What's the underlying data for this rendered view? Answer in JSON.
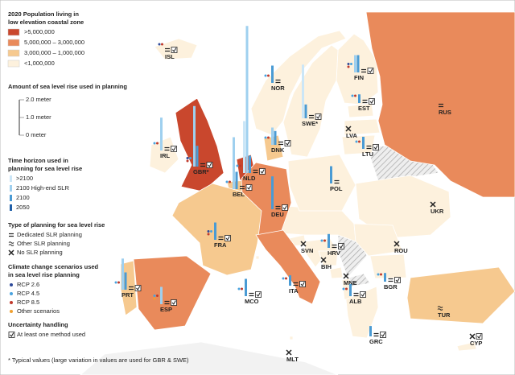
{
  "legend": {
    "population": {
      "title": [
        "2020 Population living in",
        "low elevation coastal zone"
      ],
      "items": [
        ">5,000,000",
        "5,000,000 – 3,000,000",
        "3,000,000 – 1,000,000",
        "<1,000,000"
      ],
      "colors": [
        "#c9472d",
        "#e98a5b",
        "#f6c98f",
        "#fdf1dd"
      ]
    },
    "slr": {
      "title": "Amount of sea level rise used in planning",
      "ticks": [
        "2.0 meter",
        "1.0 meter",
        "0 meter"
      ]
    },
    "horizon": {
      "title": [
        "Time horizon used in",
        "planning for sea level rise"
      ],
      "items": [
        ">2100",
        "2100 High-end SLR",
        "2100",
        "2050"
      ],
      "colors": [
        "#cbe6f7",
        "#9fd0ef",
        "#4a9bd4",
        "#1f5fa8"
      ]
    },
    "planning": {
      "title": "Type of planning for sea level rise",
      "items": [
        "Dedicated SLR planning",
        "Other SLR planning",
        "No SLR planning"
      ]
    },
    "scenarios": {
      "title": [
        "Climate change scenarios used",
        "in sea level rise planning"
      ],
      "items": [
        "RCP 2.6",
        "RCP 4.5",
        "RCP 8.5",
        "Other scenarios"
      ],
      "colors": [
        "#2e4a9a",
        "#4aa3df",
        "#c0392b",
        "#f0a030"
      ]
    },
    "uncertainty": {
      "title": "Uncertainty handling",
      "items": [
        "At least one method used"
      ]
    }
  },
  "footnote": "* Typical values (large variation in values are used for GBR & SWE)",
  "countries": [
    {
      "label": "ISL",
      "pop": 3,
      "slr": [
        null,
        null,
        null,
        null
      ],
      "plan": 0,
      "check": true,
      "scen": [
        0,
        2
      ]
    },
    {
      "label": "NOR",
      "pop": 3,
      "slr": [
        null,
        null,
        1.0,
        null
      ],
      "plan": 0,
      "check": false,
      "scen": [
        1,
        2
      ]
    },
    {
      "label": "FIN",
      "pop": 3,
      "slr": [
        null,
        1.0,
        1.0,
        null
      ],
      "plan": 0,
      "check": true,
      "scen": [
        0,
        1,
        2
      ]
    },
    {
      "label": "EST",
      "pop": 3,
      "slr": [
        null,
        null,
        0.5,
        null
      ],
      "plan": 0,
      "check": true,
      "scen": [
        1,
        2
      ]
    },
    {
      "label": "RUS",
      "pop": 1,
      "slr": [
        null,
        null,
        null,
        null
      ],
      "plan": 0,
      "check": false,
      "scen": []
    },
    {
      "label": "SWE*",
      "pop": 3,
      "slr": [
        3.1,
        null,
        0.8,
        null
      ],
      "plan": 0,
      "check": true,
      "scen": []
    },
    {
      "label": "LVA",
      "pop": 3,
      "slr": [
        null,
        null,
        null,
        null
      ],
      "plan": 2,
      "check": false,
      "scen": []
    },
    {
      "label": "DNK",
      "pop": 2,
      "slr": [
        null,
        1.0,
        0.8,
        null
      ],
      "plan": 0,
      "check": true,
      "scen": [
        1,
        2
      ]
    },
    {
      "label": "LTU",
      "pop": 3,
      "slr": [
        null,
        null,
        0.7,
        null
      ],
      "plan": 0,
      "check": true,
      "scen": [
        1,
        2
      ]
    },
    {
      "label": "IRL",
      "pop": 3,
      "slr": [
        null,
        1.9,
        null,
        null
      ],
      "plan": 0,
      "check": true,
      "scen": [
        1,
        2
      ]
    },
    {
      "label": "GBR*",
      "pop": 0,
      "slr": [
        null,
        3.5,
        1.2,
        null
      ],
      "plan": 0,
      "check": true,
      "scen": [
        0,
        1,
        2
      ]
    },
    {
      "label": "NLD",
      "pop": 0,
      "slr": [
        3.0,
        8.5,
        1.0,
        null
      ],
      "plan": 0,
      "check": true,
      "scen": [
        1,
        2
      ]
    },
    {
      "label": "BEL",
      "pop": 2,
      "slr": [
        null,
        3.0,
        1.0,
        null
      ],
      "plan": 0,
      "check": true,
      "scen": [
        1,
        2
      ]
    },
    {
      "label": "POL",
      "pop": 3,
      "slr": [
        null,
        null,
        1.0,
        null
      ],
      "plan": 0,
      "check": false,
      "scen": []
    },
    {
      "label": "UKR",
      "pop": 3,
      "slr": [
        null,
        null,
        null,
        null
      ],
      "plan": 2,
      "check": false,
      "scen": []
    },
    {
      "label": "DEU",
      "pop": 1,
      "slr": [
        null,
        null,
        1.9,
        null
      ],
      "plan": 0,
      "check": true,
      "scen": []
    },
    {
      "label": "FRA",
      "pop": 2,
      "slr": [
        null,
        null,
        1.0,
        null
      ],
      "plan": 0,
      "check": true,
      "scen": [
        0,
        1,
        2
      ]
    },
    {
      "label": "SVN",
      "pop": 3,
      "slr": [
        null,
        null,
        null,
        null
      ],
      "plan": 2,
      "check": false,
      "scen": []
    },
    {
      "label": "HRV",
      "pop": 3,
      "slr": [
        null,
        null,
        0.8,
        null
      ],
      "plan": 0,
      "check": true,
      "scen": [
        1,
        2
      ]
    },
    {
      "label": "ROU",
      "pop": 3,
      "slr": [
        null,
        null,
        null,
        null
      ],
      "plan": 2,
      "check": false,
      "scen": []
    },
    {
      "label": "BIH",
      "pop": 3,
      "slr": [
        null,
        null,
        null,
        null
      ],
      "plan": 2,
      "check": false,
      "scen": []
    },
    {
      "label": "MNE",
      "pop": 3,
      "slr": [
        null,
        null,
        null,
        null
      ],
      "plan": 2,
      "check": false,
      "scen": []
    },
    {
      "label": "PRT",
      "pop": 2,
      "slr": [
        null,
        1.8,
        1.0,
        null
      ],
      "plan": 0,
      "check": true,
      "scen": [
        1,
        2
      ]
    },
    {
      "label": "MCO",
      "pop": 3,
      "slr": [
        null,
        null,
        1.0,
        null
      ],
      "plan": 0,
      "check": true,
      "scen": [
        1,
        2
      ]
    },
    {
      "label": "ITA",
      "pop": 1,
      "slr": [
        null,
        null,
        0.6,
        null
      ],
      "plan": 0,
      "check": true,
      "scen": [
        1,
        2
      ]
    },
    {
      "label": "BGR",
      "pop": 3,
      "slr": [
        null,
        null,
        0.5,
        null
      ],
      "plan": 0,
      "check": true,
      "scen": [
        1,
        2
      ]
    },
    {
      "label": "ALB",
      "pop": 3,
      "slr": [
        null,
        null,
        0.7,
        null
      ],
      "plan": 0,
      "check": true,
      "scen": [
        1,
        2
      ]
    },
    {
      "label": "ESP",
      "pop": 1,
      "slr": [
        null,
        1.0,
        null,
        null
      ],
      "plan": 0,
      "check": true,
      "scen": [
        1,
        2,
        3
      ]
    },
    {
      "label": "TUR",
      "pop": 2,
      "slr": [
        null,
        null,
        null,
        null
      ],
      "plan": 1,
      "check": false,
      "scen": []
    },
    {
      "label": "GRC",
      "pop": 3,
      "slr": [
        null,
        null,
        0.6,
        null
      ],
      "plan": 0,
      "check": true,
      "scen": []
    },
    {
      "label": "CYP",
      "pop": 3,
      "slr": [
        null,
        null,
        null,
        null
      ],
      "plan": 2,
      "check": true,
      "scen": []
    },
    {
      "label": "MLT",
      "pop": 3,
      "slr": [
        null,
        null,
        null,
        null
      ],
      "plan": 2,
      "check": false,
      "scen": []
    }
  ]
}
